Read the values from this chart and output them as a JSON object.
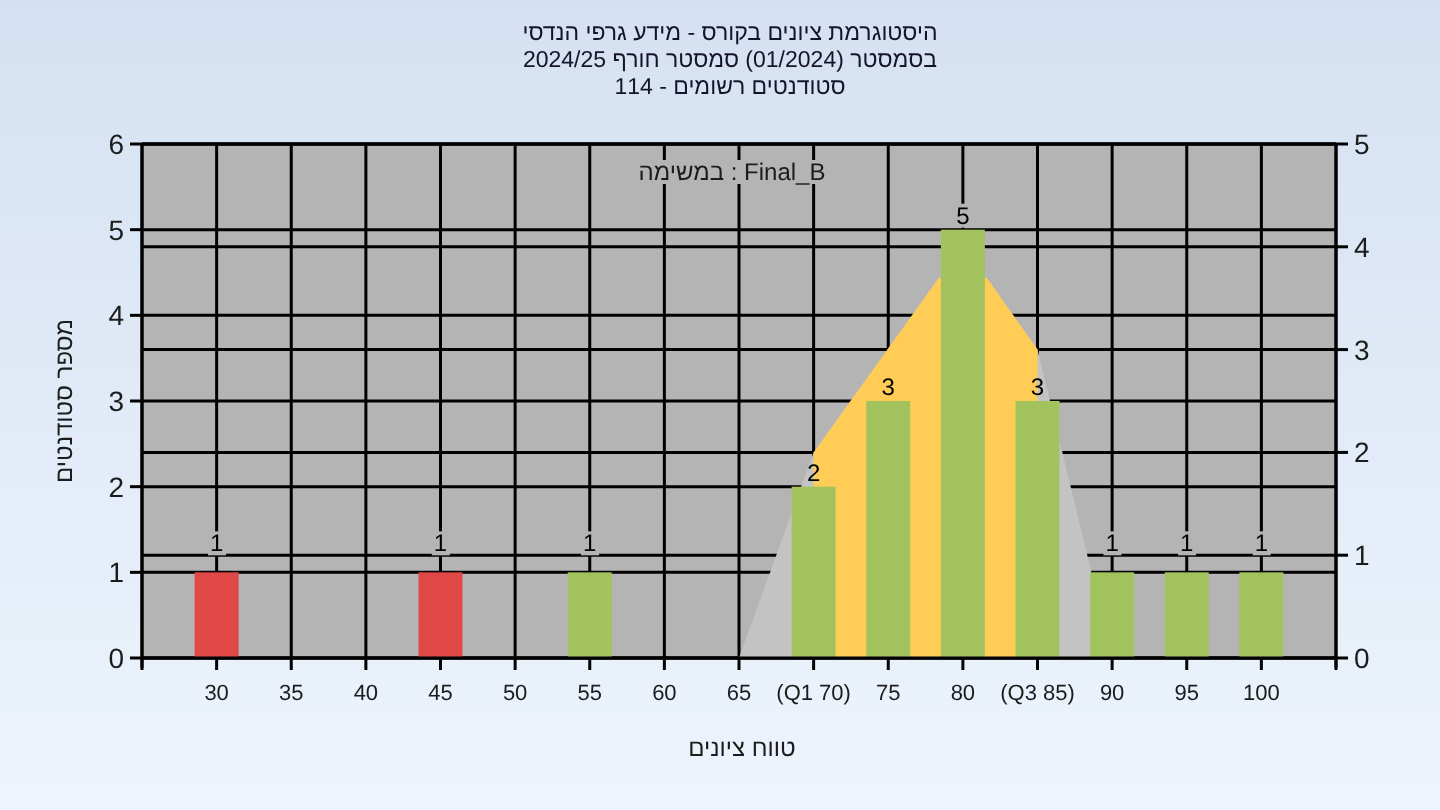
{
  "chart_data": {
    "type": "bar",
    "title": "היסטוגרמת ציונים בקורס - מידע גרפי הנדסי",
    "subtitle": "בסמסטר  (01/2024)  סמסטר חורף 2024/25\nסטודנטים רשומים - 114",
    "xlabel": "טווח ציונים",
    "ylabel": "מספר סטודנטים",
    "annotations": [
      "במשימה : Final_B"
    ],
    "xlim": [
      25,
      105
    ],
    "xticks": [
      {
        "value": 25,
        "label": null
      },
      30,
      35,
      40,
      45,
      50,
      55,
      60,
      65,
      {
        "value": 70,
        "label": "(Q1 70)"
      },
      75,
      80,
      {
        "value": 85,
        "label": "(Q3 85)"
      },
      90,
      95,
      100,
      {
        "value": 105,
        "label": null
      }
    ],
    "ylim": [
      0,
      6
    ],
    "yticks": [
      0,
      1,
      2,
      3,
      4,
      5,
      6
    ],
    "y2lim": [
      0,
      5
    ],
    "y2ticks": [
      0,
      1,
      2,
      3,
      4,
      5
    ],
    "grid": true,
    "series": [
      {
        "type": "area",
        "axis": "y2",
        "color": "#c3c3c3",
        "x": [
          65,
          70,
          78.4,
          81.6,
          85,
          90
        ],
        "values": [
          0,
          2,
          3.7,
          3.7,
          3,
          0
        ]
      },
      {
        "type": "area",
        "axis": "y2",
        "color": "#ffcc55",
        "x": [
          70,
          78.4,
          81.6,
          85
        ],
        "values": [
          2,
          3.7,
          3.7,
          3
        ]
      },
      {
        "x": [
          30,
          45,
          55,
          70,
          75,
          80,
          85,
          90,
          95,
          100
        ],
        "values": [
          1,
          1,
          1,
          2,
          3,
          5,
          3,
          1,
          1,
          1
        ],
        "value_labels": [
          "1",
          "1",
          "1",
          "2",
          "3",
          "5",
          "3",
          "1",
          "1",
          "1"
        ],
        "colors": [
          "#e04848",
          "#e04848",
          "#a2c25e",
          "#a2c25e",
          "#a2c25e",
          "#a2c25e",
          "#a2c25e",
          "#a2c25e",
          "#a2c25e",
          "#a2c25e"
        ]
      }
    ]
  }
}
